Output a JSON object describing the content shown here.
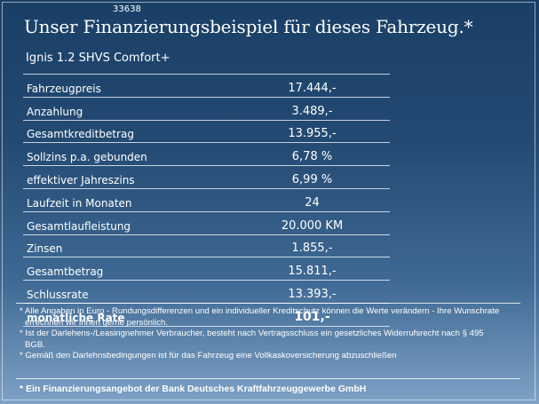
{
  "slide": {
    "ref_number": "33638",
    "title": "Unser Finanzierungsbeispiel für dieses Fahrzeug.*",
    "model": "Ignis 1.2 SHVS Comfort+"
  },
  "table": {
    "rows": [
      {
        "label": "Fahrzeugpreis",
        "value": "17.444,-"
      },
      {
        "label": "Anzahlung",
        "value": "3.489,-"
      },
      {
        "label": "Gesamtkreditbetrag",
        "value": "13.955,-"
      },
      {
        "label": "Sollzins p.a. gebunden",
        "value": "6,78 %"
      },
      {
        "label": "effektiver Jahreszins",
        "value": "6,99 %"
      },
      {
        "label": "Laufzeit in Monaten",
        "value": "24"
      },
      {
        "label": "Gesamtlaufleistung",
        "value": "20.000 KM"
      },
      {
        "label": "Zinsen",
        "value": "1.855,-"
      },
      {
        "label": "Gesamtbetrag",
        "value": "15.811,-"
      },
      {
        "label": "Schlussrate",
        "value": "13.393,-"
      },
      {
        "label": "monatliche Rate",
        "value": "101,-"
      }
    ]
  },
  "notes": [
    "* Alle Angaben in Euro - Rundungsdifferenzen und ein individueller Kreditschutz können die Werte verändern - Ihre Wunschrate errechnen wir Ihnen gerne persönlich.",
    "* Ist der Darlehens-/Leasingnehmer Verbraucher, besteht nach Vertragsschluss ein gesetzliches Widerrufsrecht   nach § 495 BGB.",
    "* Gemäß den Darlehnsbedingungen ist für das Fahrzeug eine Vollkaskoversicherung abzuschließen"
  ],
  "footer": "* Ein Finanzierungsangebot der Bank Deutsches Kraftfahrzeuggewerbe GmbH"
}
